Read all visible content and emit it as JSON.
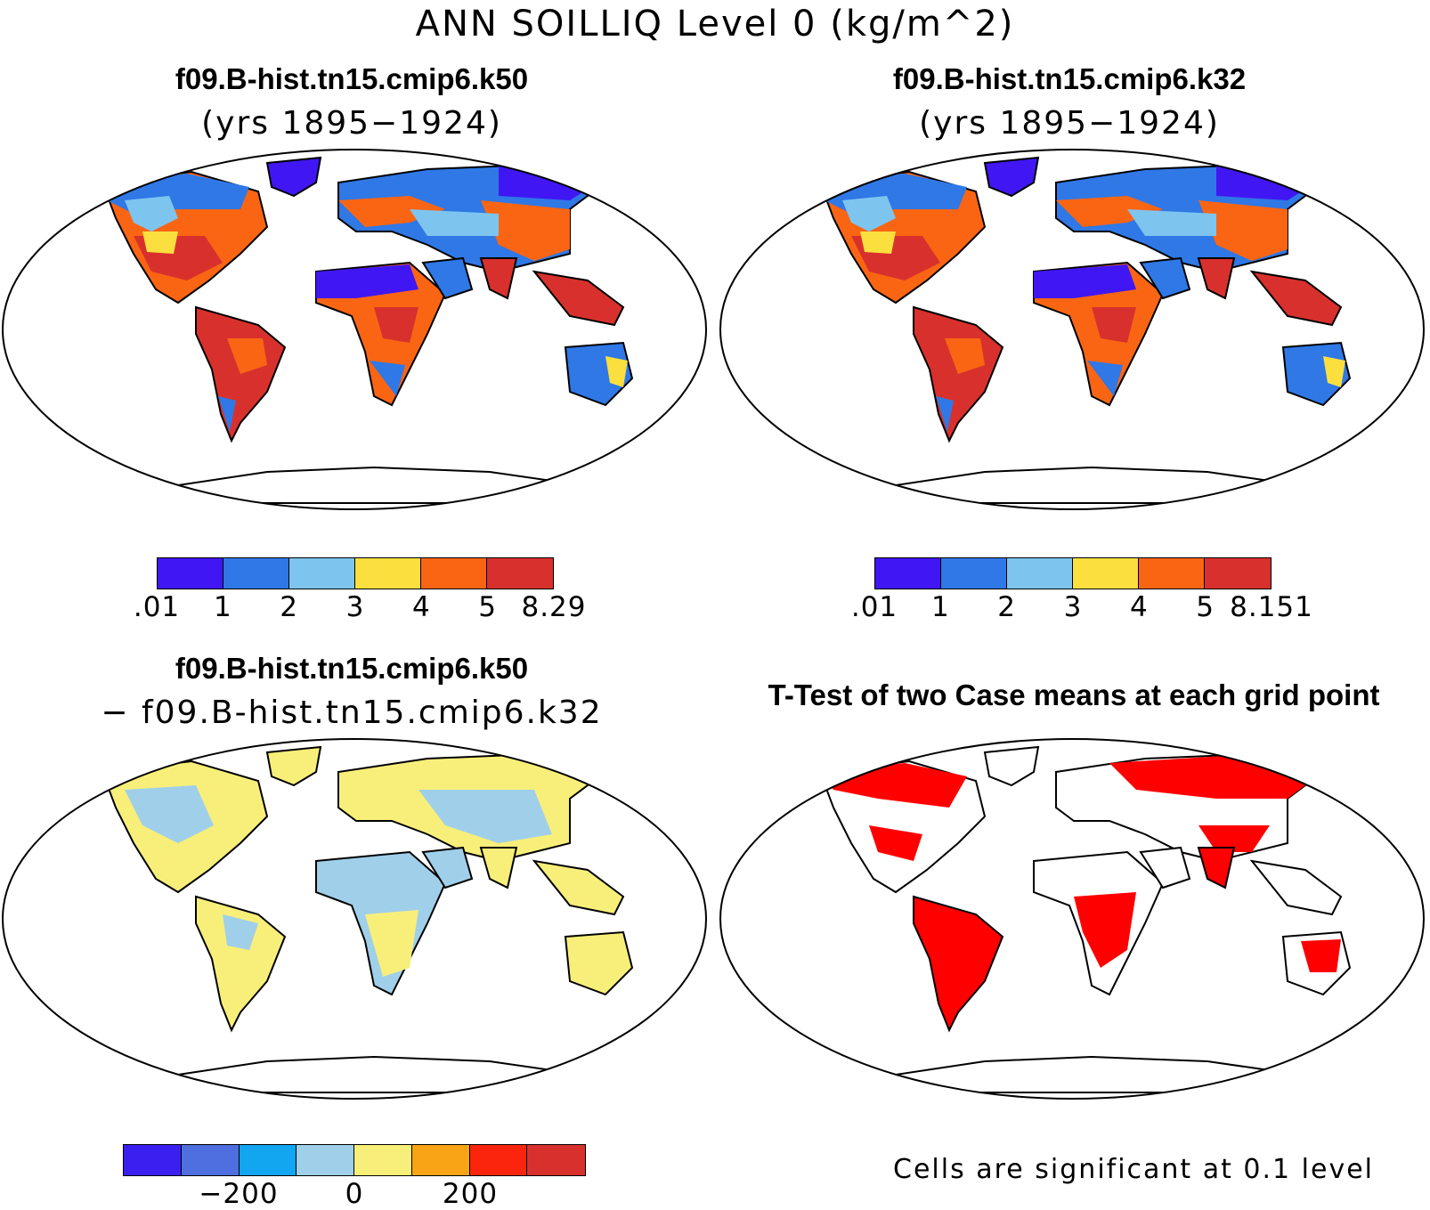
{
  "title": "ANN SOILLIQ Level 0 (kg/m^2)",
  "panels": {
    "top_left": {
      "title": "f09.B-hist.tn15.cmip6.k50",
      "subtitle": "(yrs 1895−1924)"
    },
    "top_right": {
      "title": "f09.B-hist.tn15.cmip6.k32",
      "subtitle": "(yrs 1895−1924)"
    },
    "bottom_left": {
      "title": "f09.B-hist.tn15.cmip6.k50",
      "subtitle": "− f09.B-hist.tn15.cmip6.k32"
    },
    "bottom_right": {
      "title": "T-Test of two Case means at each grid point",
      "note": "Cells are significant at 0.1 level"
    }
  },
  "colorbars": {
    "top_left": {
      "colors": [
        "#4017f2",
        "#2f78e6",
        "#7dc5ee",
        "#fbdf3e",
        "#fa6514",
        "#d8312d"
      ],
      "labels": [
        ".01",
        "1",
        "2",
        "3",
        "4",
        "5",
        "8.29"
      ]
    },
    "top_right": {
      "colors": [
        "#4017f2",
        "#2f78e6",
        "#7dc5ee",
        "#fbdf3e",
        "#fa6514",
        "#d8312d"
      ],
      "labels": [
        ".01",
        "1",
        "2",
        "3",
        "4",
        "5",
        "8.151"
      ]
    },
    "bottom_left": {
      "colors": [
        "#3b1ef0",
        "#4f6fe0",
        "#12a5f0",
        "#a0cfe9",
        "#f8ef7a",
        "#f9a417",
        "#fb250d",
        "#d8312d"
      ],
      "labels": [
        "−200",
        "0",
        "200"
      ]
    }
  },
  "colors": {
    "significant": "#ff0000",
    "land_outline": "#000000"
  }
}
